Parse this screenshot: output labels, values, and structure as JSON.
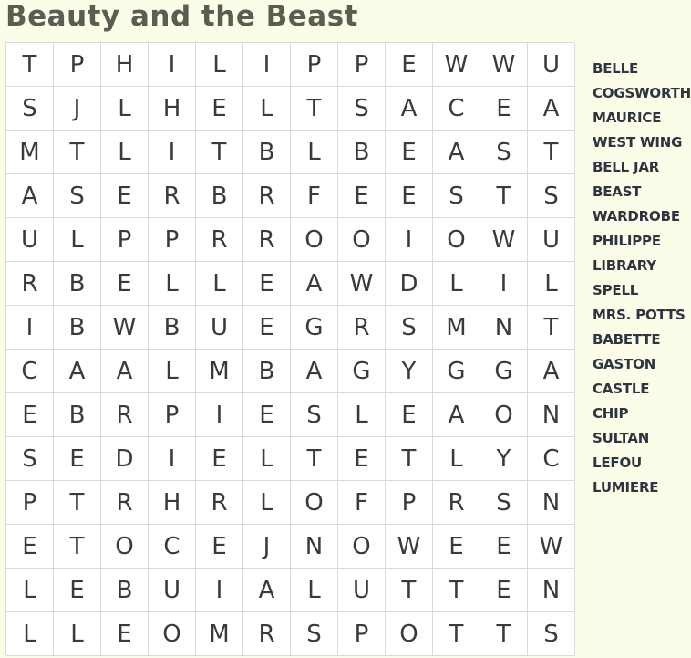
{
  "title": "Beauty and the Beast",
  "grid": [
    [
      "T",
      "P",
      "H",
      "I",
      "L",
      "I",
      "P",
      "P",
      "E",
      "W",
      "W",
      "U"
    ],
    [
      "S",
      "J",
      "L",
      "H",
      "E",
      "L",
      "T",
      "S",
      "A",
      "C",
      "E",
      "A"
    ],
    [
      "M",
      "T",
      "L",
      "I",
      "T",
      "B",
      "L",
      "B",
      "E",
      "A",
      "S",
      "T"
    ],
    [
      "A",
      "S",
      "E",
      "R",
      "B",
      "R",
      "F",
      "E",
      "E",
      "S",
      "T",
      "S"
    ],
    [
      "U",
      "L",
      "P",
      "P",
      "R",
      "R",
      "O",
      "O",
      "I",
      "O",
      "W",
      "U"
    ],
    [
      "R",
      "B",
      "E",
      "L",
      "L",
      "E",
      "A",
      "W",
      "D",
      "L",
      "I",
      "L"
    ],
    [
      "I",
      "B",
      "W",
      "B",
      "U",
      "E",
      "G",
      "R",
      "S",
      "M",
      "N",
      "T"
    ],
    [
      "C",
      "A",
      "A",
      "L",
      "M",
      "B",
      "A",
      "G",
      "Y",
      "G",
      "G",
      "A"
    ],
    [
      "E",
      "B",
      "R",
      "P",
      "I",
      "E",
      "S",
      "L",
      "E",
      "A",
      "O",
      "N"
    ],
    [
      "S",
      "E",
      "D",
      "I",
      "E",
      "L",
      "T",
      "E",
      "T",
      "L",
      "Y",
      "C"
    ],
    [
      "P",
      "T",
      "R",
      "H",
      "R",
      "L",
      "O",
      "F",
      "P",
      "R",
      "S",
      "N"
    ],
    [
      "E",
      "T",
      "O",
      "C",
      "E",
      "J",
      "N",
      "O",
      "W",
      "E",
      "E",
      "W"
    ],
    [
      "L",
      "E",
      "B",
      "U",
      "I",
      "A",
      "L",
      "U",
      "T",
      "T",
      "E",
      "N"
    ],
    [
      "L",
      "L",
      "E",
      "O",
      "M",
      "R",
      "S",
      "P",
      "O",
      "T",
      "T",
      "S"
    ]
  ],
  "words": [
    "BELLE",
    "COGSWORTH",
    "MAURICE",
    "WEST WING",
    "BELL JAR",
    "BEAST",
    "WARDROBE",
    "PHILIPPE",
    "LIBRARY",
    "SPELL",
    "MRS. POTTS",
    "BABETTE",
    "GASTON",
    "CASTLE",
    "CHIP",
    "SULTAN",
    "LEFOU",
    "LUMIERE"
  ]
}
